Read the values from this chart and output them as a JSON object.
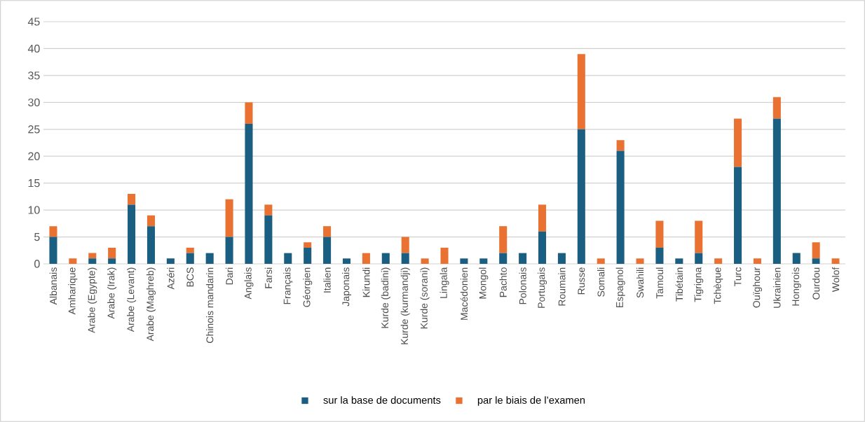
{
  "chart_data": {
    "type": "bar",
    "stacked": true,
    "grid": "y",
    "legend": "bottom",
    "categories": [
      "Albanais",
      "Amharique",
      "Arabe (Egypte)",
      "Arabe (Irak)",
      "Arabe (Levant)",
      "Arabe (Maghreb)",
      "Azéri",
      "BCS",
      "Chinois mandarin",
      "Dari",
      "Anglais",
      "Farsi",
      "Français",
      "Géorgien",
      "Italien",
      "Japonais",
      "Kirundi",
      "Kurde (badini)",
      "Kurde (kurmandji)",
      "Kurde (sorani)",
      "Lingala",
      "Macédonien",
      "Mongol",
      "Pachto",
      "Polonais",
      "Portugais",
      "Roumain",
      "Russe",
      "Somali",
      "Espagnol",
      "Swahili",
      "Tamoul",
      "Tibétain",
      "Tigrigna",
      "Tchèque",
      "Turc",
      "Ouïghour",
      "Ukrainien",
      "Hongrois",
      "Ourdou",
      "Wolof"
    ],
    "series": [
      {
        "name": "sur la base de documents",
        "color": "#1a5f82",
        "values": [
          5,
          0,
          1,
          1,
          11,
          7,
          1,
          2,
          2,
          5,
          26,
          9,
          2,
          3,
          5,
          1,
          0,
          2,
          2,
          0,
          0,
          1,
          1,
          2,
          2,
          6,
          2,
          25,
          0,
          21,
          0,
          3,
          1,
          2,
          0,
          18,
          0,
          27,
          2,
          1,
          0
        ]
      },
      {
        "name": "par le biais de l’examen",
        "color": "#e97132",
        "values": [
          2,
          1,
          1,
          2,
          2,
          2,
          0,
          1,
          0,
          7,
          4,
          2,
          0,
          1,
          2,
          0,
          2,
          0,
          3,
          1,
          3,
          0,
          0,
          5,
          0,
          5,
          0,
          14,
          1,
          2,
          1,
          5,
          0,
          6,
          1,
          9,
          1,
          4,
          0,
          3,
          1
        ]
      }
    ],
    "ylim": [
      0,
      45
    ],
    "yticks": [
      0,
      5,
      10,
      15,
      20,
      25,
      30,
      35,
      40,
      45
    ]
  }
}
